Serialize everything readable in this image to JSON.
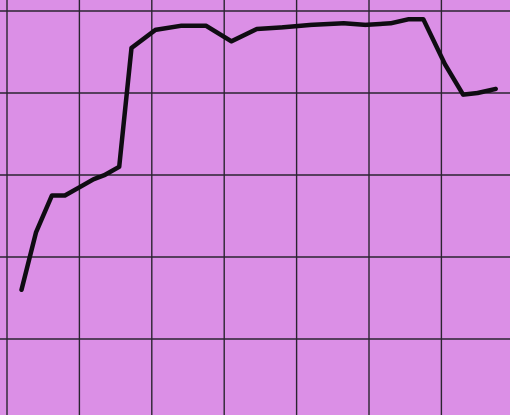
{
  "colors": {
    "background": "#db8fe6",
    "grid": "#2a2430",
    "line": "#0f0c12"
  },
  "chart_data": {
    "type": "line",
    "title": "",
    "xlabel": "",
    "ylabel": "",
    "grid": true,
    "legend": "none",
    "xlim": [
      0,
      7
    ],
    "ylim": [
      0,
      5
    ],
    "series": [
      {
        "x": [
          0.2,
          0.4,
          0.62,
          0.8,
          1.0,
          1.2,
          1.35,
          1.55,
          1.72,
          2.05,
          2.4,
          2.75,
          3.1,
          3.45,
          3.8,
          4.2,
          4.65,
          4.95,
          5.3,
          5.55,
          5.75,
          6.05,
          6.3,
          6.5,
          6.75
        ],
        "y": [
          1.6,
          2.3,
          2.75,
          2.75,
          2.85,
          2.95,
          3.0,
          3.1,
          4.55,
          4.77,
          4.82,
          4.82,
          4.63,
          4.78,
          4.8,
          4.83,
          4.85,
          4.83,
          4.85,
          4.9,
          4.9,
          4.35,
          3.98,
          4.0,
          4.05
        ]
      }
    ]
  }
}
